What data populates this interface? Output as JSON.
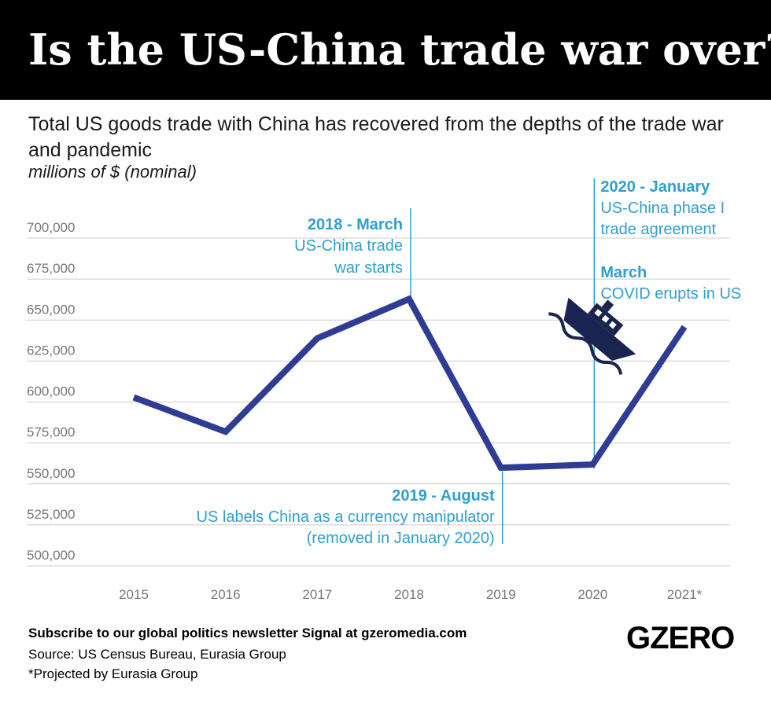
{
  "header": {
    "title": "Is the US-China trade war over?"
  },
  "subtitle": "Total US goods trade with China has recovered from the depths of the trade war and pandemic",
  "units": "millions of $ (nominal)",
  "colors": {
    "line": "#2e3c94",
    "annotation": "#2f9fd0",
    "grid": "#cccccc",
    "tick": "#777777"
  },
  "chart_data": {
    "type": "line",
    "title": "Is the US-China trade war over?",
    "subtitle": "Total US goods trade with China has recovered from the depths of the trade war and pandemic",
    "ylabel": "millions of $ (nominal)",
    "xlabel": "",
    "grid": true,
    "ylim": [
      500000,
      700000
    ],
    "yticks": [
      500000,
      525000,
      550000,
      575000,
      600000,
      625000,
      650000,
      675000,
      700000
    ],
    "ytick_labels": [
      "500,000",
      "525,000",
      "550,000",
      "575,000",
      "600,000",
      "625,000",
      "650,000",
      "675,000",
      "700,000"
    ],
    "categories": [
      "2015",
      "2016",
      "2017",
      "2018",
      "2019",
      "2020",
      "2021*"
    ],
    "series": [
      {
        "name": "Total US goods trade with China",
        "x": [
          2015,
          2016,
          2017,
          2018,
          2019,
          2020,
          2021
        ],
        "values": [
          599000,
          578000,
          635000,
          659000,
          556000,
          558000,
          642000
        ]
      }
    ],
    "annotations": [
      {
        "x": 2018,
        "head": "2018 - March",
        "body": [
          "US-China trade",
          "war starts"
        ]
      },
      {
        "x": 2019,
        "head": "2019 - August",
        "body": [
          "US labels China as a currency manipulator",
          "(removed in January 2020)"
        ]
      },
      {
        "x": 2020,
        "head": "2020 - January",
        "body": [
          "US-China phase I",
          "trade agreement"
        ],
        "head2": "March",
        "body2": [
          "COVID erupts in US"
        ]
      }
    ]
  },
  "footer": {
    "cta": "Subscribe to our global politics newsletter Signal at gzeromedia.com",
    "source": "Source: US Census Bureau, Eurasia Group",
    "note": "*Projected by Eurasia Group"
  },
  "logo": "GZERO",
  "icons": [
    "ship-icon"
  ]
}
